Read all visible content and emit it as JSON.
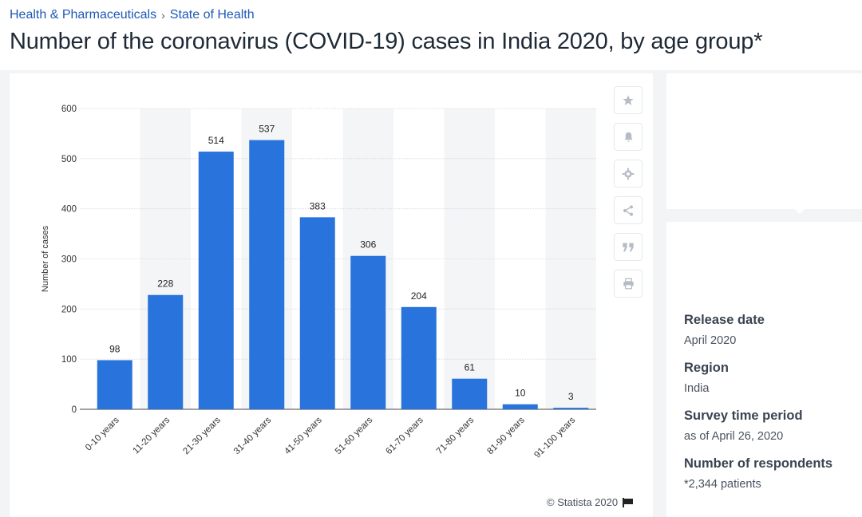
{
  "breadcrumb": {
    "parent": "Health & Pharmaceuticals",
    "separator": "›",
    "current": "State of Health"
  },
  "page_title": "Number of the coronavirus (COVID-19) cases in India 2020, by age group*",
  "toolbar": {
    "icons": [
      "star-icon",
      "bell-icon",
      "gear-icon",
      "share-icon",
      "quote-icon",
      "print-icon"
    ]
  },
  "credit": "© Statista 2020",
  "details": {
    "release_date_label": "Release date",
    "release_date": "April 2020",
    "region_label": "Region",
    "region": "India",
    "survey_period_label": "Survey time period",
    "survey_period": "as of April 26, 2020",
    "respondents_label": "Number of respondents",
    "respondents": "*2,344 patients"
  },
  "colors": {
    "bar": "#2873dc",
    "accent_link": "#1d58b8",
    "band": "#f4f5f7"
  },
  "chart_data": {
    "type": "bar",
    "title": "",
    "xlabel": "",
    "ylabel": "Number of cases",
    "ylim": [
      0,
      600
    ],
    "yticks": [
      0,
      100,
      200,
      300,
      400,
      500,
      600
    ],
    "grid": true,
    "categories": [
      "0-10 years",
      "11-20 years",
      "21-30 years",
      "31-40 years",
      "41-50 years",
      "51-60 years",
      "61-70 years",
      "71-80 years",
      "81-90 years",
      "91-100 years"
    ],
    "values": [
      98,
      228,
      514,
      537,
      383,
      306,
      204,
      61,
      10,
      3
    ]
  }
}
